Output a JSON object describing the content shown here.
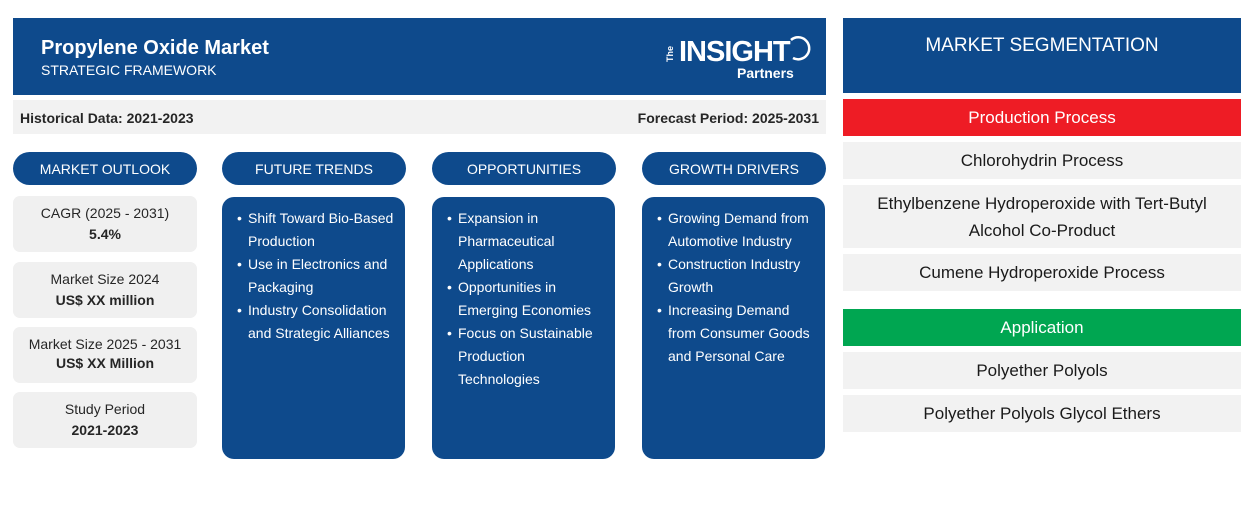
{
  "header": {
    "title": "Propylene Oxide Market",
    "subtitle": "STRATEGIC FRAMEWORK",
    "logo": {
      "the": "The",
      "insight": "INSIGHT",
      "partners": "Partners"
    }
  },
  "period": {
    "historical": "Historical Data: 2021-2023",
    "forecast": "Forecast Period: 2025-2031"
  },
  "columns": {
    "outlook": "MARKET OUTLOOK",
    "trends": "FUTURE TRENDS",
    "opportunities": "OPPORTUNITIES",
    "drivers": "GROWTH DRIVERS"
  },
  "outlook": [
    {
      "label": "CAGR (2025 - 2031)",
      "value": "5.4%"
    },
    {
      "label": "Market Size 2024",
      "value": "US$ XX million"
    },
    {
      "label": "Market Size 2025 - 2031",
      "value": "US$ XX Million"
    },
    {
      "label": "Study Period",
      "value": "2021-2023"
    }
  ],
  "trends": [
    "Shift Toward Bio-Based Production",
    "Use in Electronics and Packaging",
    "Industry Consolidation and Strategic Alliances"
  ],
  "opportunities": [
    "Expansion in Pharmaceutical Applications",
    "Opportunities in Emerging Economies",
    "Focus on Sustainable Production Technologies"
  ],
  "drivers": [
    "Growing Demand from Automotive Industry",
    "Construction Industry Growth",
    "Increasing Demand from Consumer Goods and Personal Care"
  ],
  "segmentation": {
    "title": "MARKET SEGMENTATION",
    "categories": [
      {
        "name": "Production Process",
        "color": "#ee1c25",
        "items": [
          "Chlorohydrin Process",
          "Ethylbenzene Hydroperoxide with Tert-Butyl Alcohol Co-Product",
          "Cumene Hydroperoxide Process"
        ]
      },
      {
        "name": "Application",
        "color": "#00a651",
        "items": [
          "Polyether Polyols",
          "Polyether Polyols Glycol Ethers"
        ]
      }
    ]
  },
  "colors": {
    "primary": "#0e4a8c",
    "panel_bg": "#f2f2f2"
  }
}
